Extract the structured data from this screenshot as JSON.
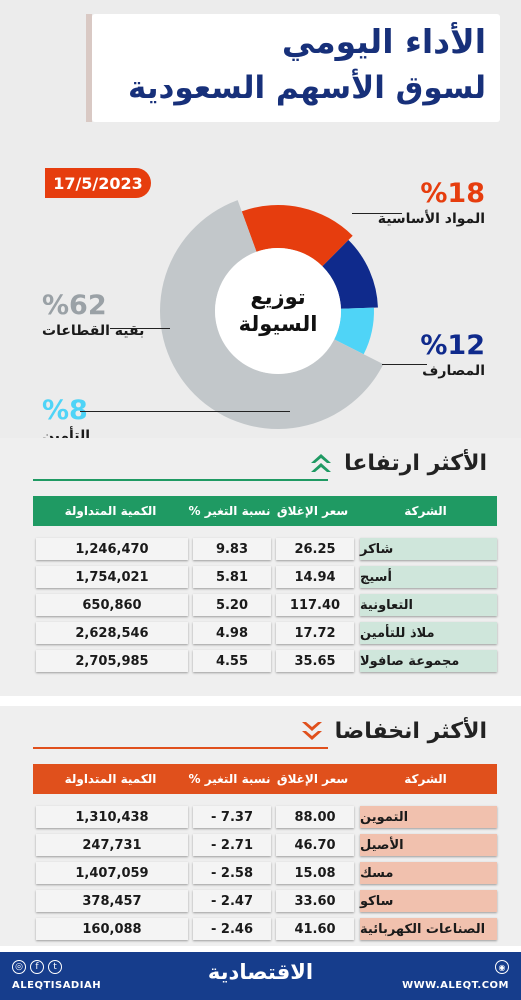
{
  "header": {
    "title_line1": "الأداء اليومي",
    "title_line2": "لسوق الأسهم السعودية",
    "date": "17/5/2023"
  },
  "colors": {
    "brand_blue": "#17307a",
    "accent_red": "#e63d0e",
    "gain_green": "#1f9a63",
    "gain_cell": "#cfe6db",
    "loss_red": "#e0501c",
    "loss_cell": "#f1c1ae",
    "other_grey": "#c2c7ca",
    "banks_navy": "#0f2a8c",
    "insurance_cyan": "#4fd4f7"
  },
  "chart_data": {
    "type": "pie",
    "title": "توزيع السيولة",
    "center_label_line1": "توزيع",
    "center_label_line2": "السيولة",
    "slices": [
      {
        "label": "المواد الأساسية",
        "pct_text": "%18",
        "value": 18,
        "color": "#e63d0e"
      },
      {
        "label": "المصارف",
        "pct_text": "%12",
        "value": 12,
        "color": "#0f2a8c"
      },
      {
        "label": "التأمين",
        "pct_text": "%8",
        "value": 8,
        "color": "#4fd4f7"
      },
      {
        "label": "بقية القطاعات",
        "pct_text": "%62",
        "value": 62,
        "color": "#c2c7ca"
      }
    ]
  },
  "gainers": {
    "title": "الأكثر ارتفاعا",
    "icon": "double-chevron-up-icon",
    "columns": {
      "company": "الشركة",
      "close": "سعر الإغلاق",
      "change": "نسبة التغير %",
      "volume": "الكمية المتداولة"
    },
    "rows": [
      {
        "company": "شاكر",
        "close": "26.25",
        "change": "9.83",
        "volume": "1,246,470"
      },
      {
        "company": "أسيج",
        "close": "14.94",
        "change": "5.81",
        "volume": "1,754,021"
      },
      {
        "company": "التعاونية",
        "close": "117.40",
        "change": "5.20",
        "volume": "650,860"
      },
      {
        "company": "ملاذ للتأمين",
        "close": "17.72",
        "change": "4.98",
        "volume": "2,628,546"
      },
      {
        "company": "مجموعة صافولا",
        "close": "35.65",
        "change": "4.55",
        "volume": "2,705,985"
      }
    ]
  },
  "losers": {
    "title": "الأكثر انخفاضا",
    "icon": "double-chevron-down-icon",
    "columns": {
      "company": "الشركة",
      "close": "سعر الإغلاق",
      "change": "نسبة التغير %",
      "volume": "الكمية المتداولة"
    },
    "rows": [
      {
        "company": "التموين",
        "close": "88.00",
        "change": "- 7.37",
        "volume": "1,310,438"
      },
      {
        "company": "الأصيل",
        "close": "46.70",
        "change": "- 2.71",
        "volume": "247,731"
      },
      {
        "company": "مسك",
        "close": "15.08",
        "change": "- 2.58",
        "volume": "1,407,059"
      },
      {
        "company": "ساكو",
        "close": "33.60",
        "change": "- 2.47",
        "volume": "378,457"
      },
      {
        "company": "الصناعات الكهربائية",
        "close": "41.60",
        "change": "- 2.46",
        "volume": "160,088"
      }
    ]
  },
  "footer": {
    "social_handle": "ALEQTISADIAH",
    "logo": "الاقتصادية",
    "website": "WWW.ALEQT.COM"
  }
}
